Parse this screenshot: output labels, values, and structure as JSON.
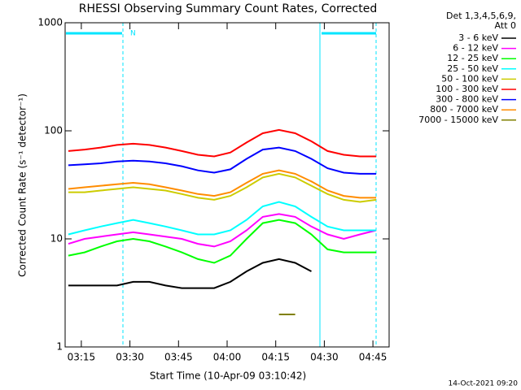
{
  "chart_data": {
    "type": "line",
    "title": "RHESSI Observing Summary Count Rates, Corrected",
    "x_label": "Start Time (10-Apr-09 03:10:42)",
    "y_label": "Corrected Count Rate (s⁻¹ detector⁻¹)",
    "legend_title": [
      "Det 1,3,4,5,6,9,",
      "Att 0"
    ],
    "footer": "14-Oct-2021 09:20",
    "annotations": [
      "N"
    ],
    "log_y": true,
    "x": [
      "03:11",
      "03:16",
      "03:21",
      "03:26",
      "03:31",
      "03:36",
      "03:41",
      "03:46",
      "03:51",
      "03:56",
      "04:01",
      "04:06",
      "04:11",
      "04:16",
      "04:21",
      "04:26",
      "04:31",
      "04:36",
      "04:41",
      "04:46"
    ],
    "xlim": [
      "03:10",
      "04:50"
    ],
    "xticks": [
      "03:15",
      "03:30",
      "03:45",
      "04:00",
      "04:15",
      "04:30",
      "04:45"
    ],
    "ylim": [
      1,
      1000
    ],
    "yticks": [
      1,
      10,
      100,
      1000
    ],
    "series": [
      {
        "name": "3 - 6 keV",
        "color": "#000000",
        "values": [
          3.7,
          3.7,
          3.7,
          3.7,
          4,
          4,
          3.7,
          3.5,
          3.5,
          3.5,
          4,
          5,
          6,
          6.5,
          6,
          5,
          null,
          null,
          null,
          null
        ]
      },
      {
        "name": "6 - 12 keV",
        "color": "#ff00ff",
        "values": [
          9,
          10,
          10.5,
          11,
          11.5,
          11,
          10.5,
          10,
          9,
          8.5,
          9.5,
          12,
          16,
          17,
          16,
          13,
          11,
          10,
          11,
          12
        ]
      },
      {
        "name": "12 - 25 keV",
        "color": "#00ff00",
        "values": [
          7,
          7.5,
          8.5,
          9.5,
          10,
          9.5,
          8.5,
          7.5,
          6.5,
          6,
          7,
          10,
          14,
          15,
          14,
          11,
          8,
          7.5,
          7.5,
          7.5
        ]
      },
      {
        "name": "25 - 50 keV",
        "color": "#00ffff",
        "values": [
          11,
          12,
          13,
          14,
          15,
          14,
          13,
          12,
          11,
          11,
          12,
          15,
          20,
          22,
          20,
          16,
          13,
          12,
          12,
          12
        ]
      },
      {
        "name": "50 - 100 keV",
        "color": "#cccc00",
        "values": [
          27,
          27,
          28,
          29,
          30,
          29,
          28,
          26,
          24,
          23,
          25,
          30,
          37,
          40,
          37,
          31,
          26,
          23,
          22,
          23
        ]
      },
      {
        "name": "100 - 300 keV",
        "color": "#ff0000",
        "values": [
          65,
          67,
          70,
          74,
          76,
          74,
          70,
          65,
          60,
          58,
          63,
          78,
          95,
          102,
          95,
          80,
          65,
          60,
          58,
          58
        ]
      },
      {
        "name": "300 - 800 keV",
        "color": "#0000ff",
        "values": [
          48,
          49,
          50,
          52,
          53,
          52,
          50,
          47,
          43,
          41,
          44,
          55,
          67,
          70,
          65,
          55,
          45,
          41,
          40,
          40
        ]
      },
      {
        "name": "800 - 7000 keV",
        "color": "#ff8c00",
        "values": [
          29,
          30,
          31,
          32,
          33,
          32,
          30,
          28,
          26,
          25,
          27,
          33,
          40,
          43,
          40,
          34,
          28,
          25,
          24,
          24
        ]
      },
      {
        "name": "7000 - 15000 keV",
        "color": "#808000",
        "values": [
          null,
          null,
          null,
          null,
          null,
          null,
          null,
          null,
          null,
          null,
          null,
          null,
          null,
          2,
          2,
          null,
          null,
          null,
          null,
          null
        ]
      }
    ]
  }
}
